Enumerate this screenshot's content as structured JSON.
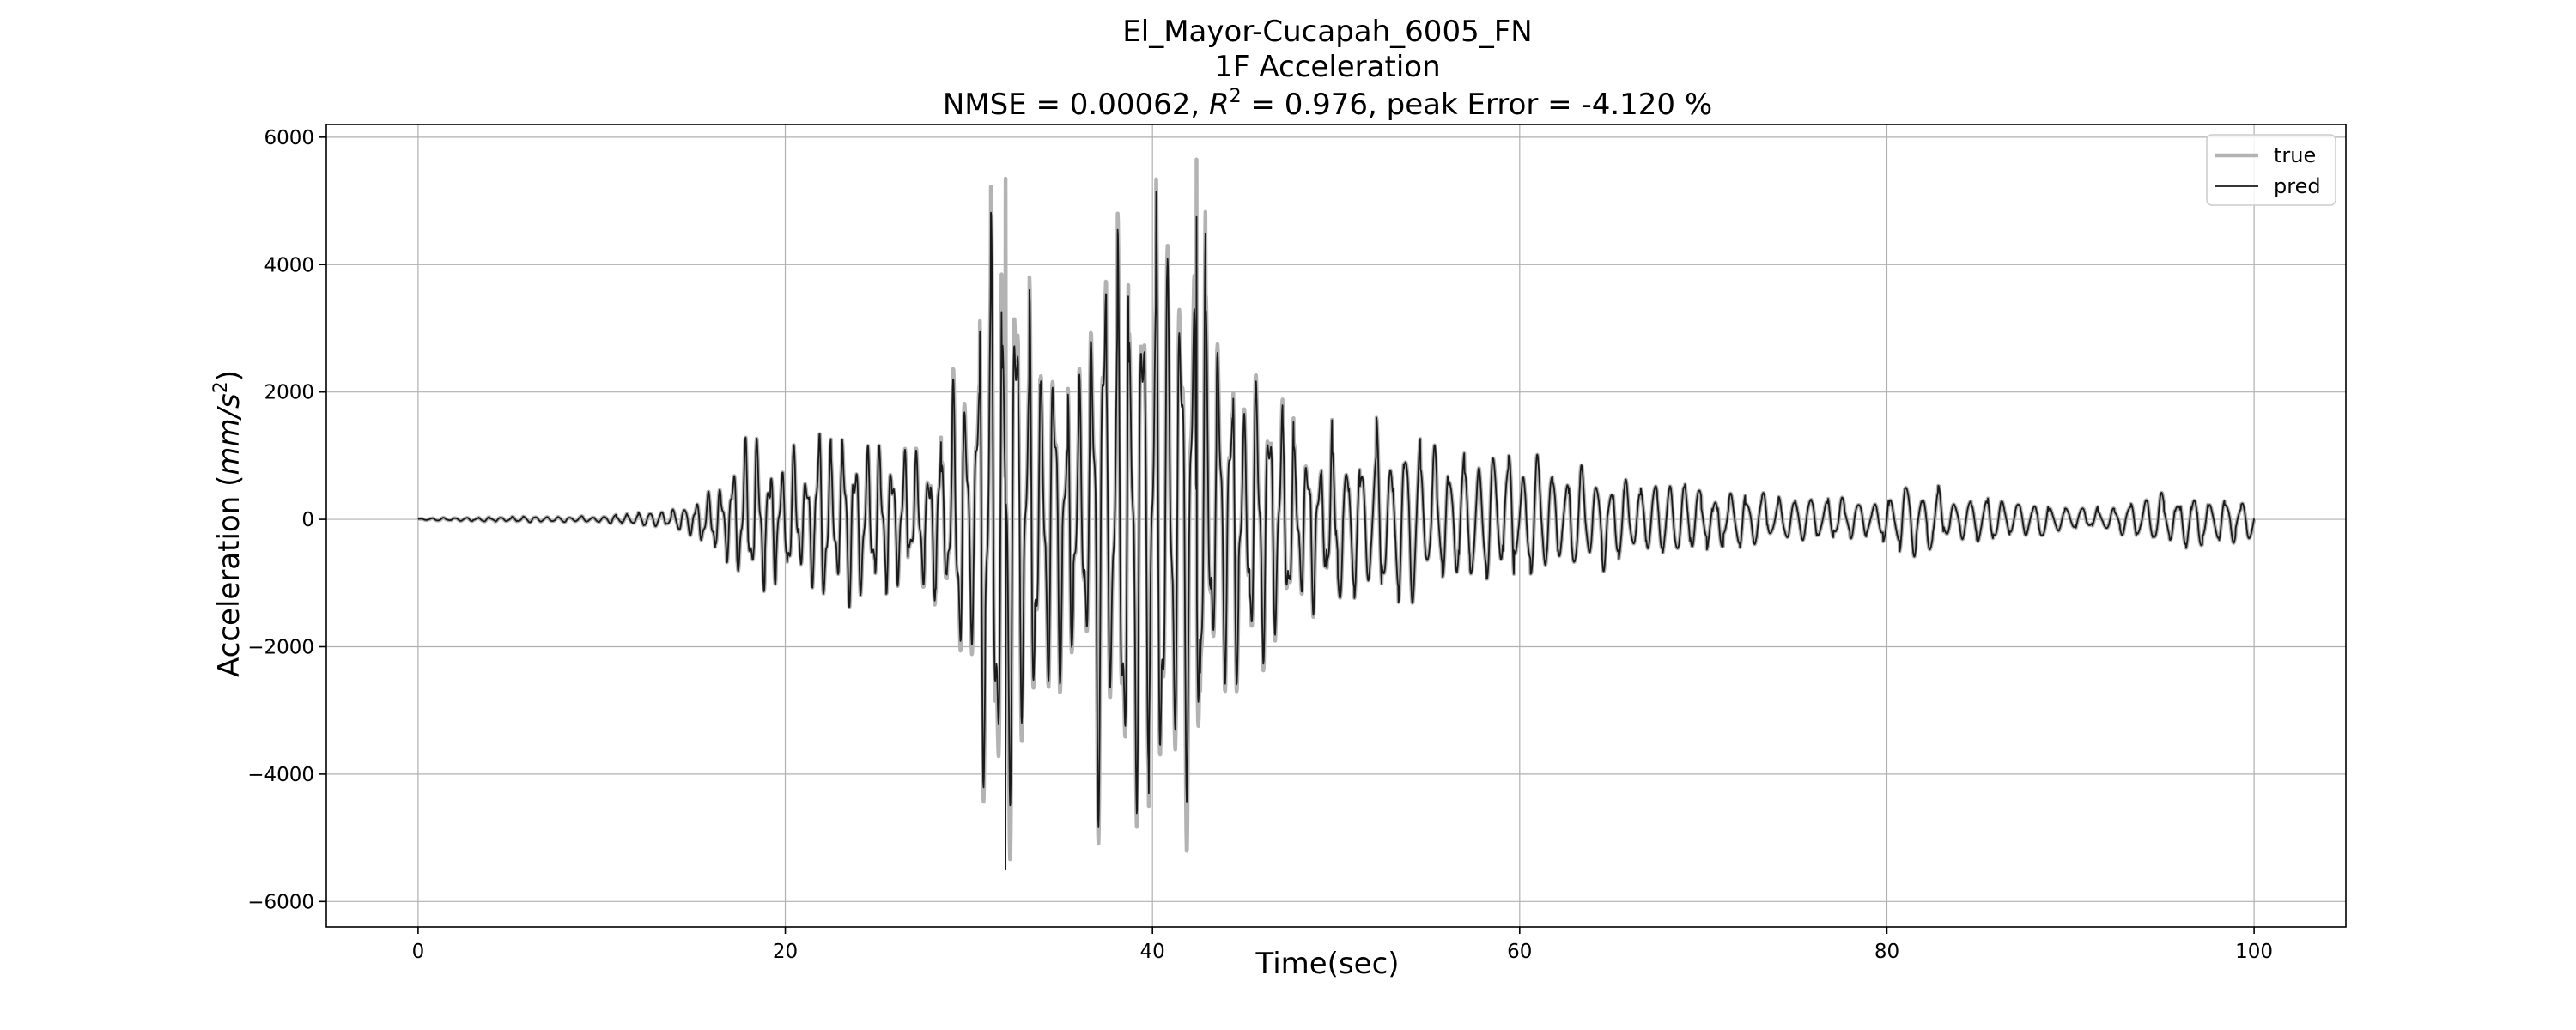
{
  "chart_data": {
    "type": "line",
    "title_lines": [
      "El_Mayor-Cucapah_6005_FN",
      "1F Acceleration"
    ],
    "metrics": {
      "nmse_label": "NMSE = 0.00062, ",
      "r2_symbol": "R",
      "r2_superscript": "2",
      "r2_rest": " = 0.976, peak Error = -4.120 %"
    },
    "xlabel": "Time(sec)",
    "ylabel_prefix": "Acceleration (",
    "ylabel_unit": "mm/s",
    "ylabel_superscript": "2",
    "ylabel_suffix": ")",
    "xlim": [
      -5,
      105
    ],
    "ylim": [
      -6400,
      6200
    ],
    "xticks": [
      0,
      20,
      40,
      60,
      80,
      100
    ],
    "xtick_labels": [
      "0",
      "20",
      "40",
      "60",
      "80",
      "100"
    ],
    "yticks": [
      -6000,
      -4000,
      -2000,
      0,
      2000,
      4000,
      6000
    ],
    "ytick_labels": [
      "−6000",
      "−4000",
      "−2000",
      "0",
      "2000",
      "4000",
      "6000"
    ],
    "grid": true,
    "legend_position": "top-right",
    "series": [
      {
        "name": "true",
        "color": "#b3b3b3",
        "envelope": [
          [
            0,
            20
          ],
          [
            10,
            60
          ],
          [
            14,
            150
          ],
          [
            16,
            450
          ],
          [
            18,
            1100
          ],
          [
            20,
            900
          ],
          [
            22,
            1300
          ],
          [
            24,
            1100
          ],
          [
            26,
            900
          ],
          [
            28,
            1200
          ],
          [
            30,
            2600
          ],
          [
            31,
            4300
          ],
          [
            32,
            5350
          ],
          [
            33,
            3300
          ],
          [
            34,
            3000
          ],
          [
            35,
            2000
          ],
          [
            36,
            2700
          ],
          [
            37,
            4000
          ],
          [
            38,
            3700
          ],
          [
            39,
            4400
          ],
          [
            40,
            4450
          ],
          [
            41,
            3900
          ],
          [
            42,
            5650
          ],
          [
            43,
            3800
          ],
          [
            44,
            2400
          ],
          [
            45,
            2500
          ],
          [
            46,
            2300
          ],
          [
            47,
            2000
          ],
          [
            48,
            1600
          ],
          [
            50,
            1300
          ],
          [
            52,
            1700
          ],
          [
            54,
            1500
          ],
          [
            56,
            1300
          ],
          [
            58,
            1150
          ],
          [
            60,
            1050
          ],
          [
            62,
            950
          ],
          [
            64,
            800
          ],
          [
            66,
            650
          ],
          [
            68,
            600
          ],
          [
            70,
            550
          ],
          [
            72,
            480
          ],
          [
            74,
            420
          ],
          [
            76,
            400
          ],
          [
            78,
            380
          ],
          [
            80,
            420
          ],
          [
            81,
            600
          ],
          [
            82,
            550
          ],
          [
            84,
            420
          ],
          [
            86,
            400
          ],
          [
            88,
            350
          ],
          [
            90,
            200
          ],
          [
            92,
            200
          ],
          [
            94,
            350
          ],
          [
            96,
            480
          ],
          [
            98,
            430
          ],
          [
            100,
            300
          ]
        ],
        "notable_peaks": [
          {
            "x": 32.0,
            "y": -5750
          },
          {
            "x": 32.0,
            "y": 5350
          },
          {
            "x": 42.4,
            "y": 5650
          },
          {
            "x": 39.8,
            "y": -4500
          }
        ]
      },
      {
        "name": "pred",
        "color": "#1a1a1a",
        "envelope": [
          [
            0,
            20
          ],
          [
            10,
            60
          ],
          [
            14,
            150
          ],
          [
            16,
            450
          ],
          [
            18,
            1100
          ],
          [
            20,
            900
          ],
          [
            22,
            1300
          ],
          [
            24,
            1100
          ],
          [
            26,
            900
          ],
          [
            28,
            1150
          ],
          [
            30,
            2400
          ],
          [
            31,
            4100
          ],
          [
            32,
            4400
          ],
          [
            33,
            3100
          ],
          [
            34,
            2900
          ],
          [
            35,
            1900
          ],
          [
            36,
            2600
          ],
          [
            37,
            3800
          ],
          [
            38,
            3500
          ],
          [
            39,
            4200
          ],
          [
            40,
            4300
          ],
          [
            41,
            3700
          ],
          [
            42,
            4750
          ],
          [
            43,
            3600
          ],
          [
            44,
            2300
          ],
          [
            45,
            2400
          ],
          [
            46,
            2200
          ],
          [
            47,
            1900
          ],
          [
            48,
            1550
          ],
          [
            50,
            1300
          ],
          [
            52,
            1700
          ],
          [
            54,
            1500
          ],
          [
            56,
            1300
          ],
          [
            58,
            1150
          ],
          [
            60,
            1050
          ],
          [
            62,
            950
          ],
          [
            64,
            800
          ],
          [
            66,
            650
          ],
          [
            68,
            600
          ],
          [
            70,
            550
          ],
          [
            72,
            480
          ],
          [
            74,
            420
          ],
          [
            76,
            400
          ],
          [
            78,
            380
          ],
          [
            80,
            420
          ],
          [
            81,
            600
          ],
          [
            82,
            550
          ],
          [
            84,
            420
          ],
          [
            86,
            400
          ],
          [
            88,
            350
          ],
          [
            90,
            200
          ],
          [
            92,
            200
          ],
          [
            94,
            350
          ],
          [
            96,
            480
          ],
          [
            98,
            430
          ],
          [
            100,
            300
          ]
        ],
        "notable_peaks": [
          {
            "x": 32.0,
            "y": -5500
          },
          {
            "x": 42.4,
            "y": 4750
          },
          {
            "x": 39.8,
            "y": -4300
          }
        ]
      }
    ]
  }
}
